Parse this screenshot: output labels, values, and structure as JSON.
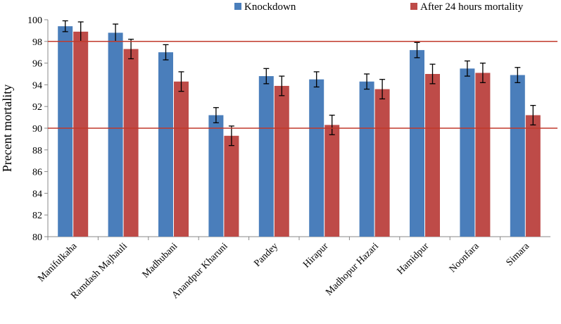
{
  "chart_data": {
    "type": "bar",
    "y_label": "Precent mortality",
    "categories": [
      "Manifulkaha",
      "Ramdash Majhauli",
      "Madhubani",
      "Anandpur Kharuni",
      "Pandey",
      "Hirapur",
      "Madhopur Hazari",
      "Hamidpur",
      "Noonfara",
      "Simara"
    ],
    "series": [
      {
        "name": "Knockdown",
        "color": "#4a7ebb",
        "values": [
          99.4,
          98.8,
          97.0,
          91.2,
          94.8,
          94.5,
          94.3,
          97.2,
          95.5,
          94.9
        ],
        "errors": [
          0.5,
          0.8,
          0.7,
          0.7,
          0.7,
          0.7,
          0.7,
          0.7,
          0.7,
          0.7
        ]
      },
      {
        "name": "After 24 hours mortality",
        "color": "#be4b48",
        "values": [
          98.9,
          97.3,
          94.3,
          89.3,
          93.9,
          90.3,
          93.6,
          95.0,
          95.1,
          91.2
        ],
        "errors": [
          0.9,
          0.9,
          0.9,
          0.9,
          0.9,
          0.9,
          0.9,
          0.9,
          0.9,
          0.9
        ]
      }
    ],
    "ylim": [
      80,
      100
    ],
    "yticks": [
      80,
      82,
      84,
      86,
      88,
      90,
      92,
      94,
      96,
      98,
      100
    ],
    "reference_lines": [
      98,
      90
    ],
    "reference_color": "#c0392b",
    "legend": "top"
  }
}
